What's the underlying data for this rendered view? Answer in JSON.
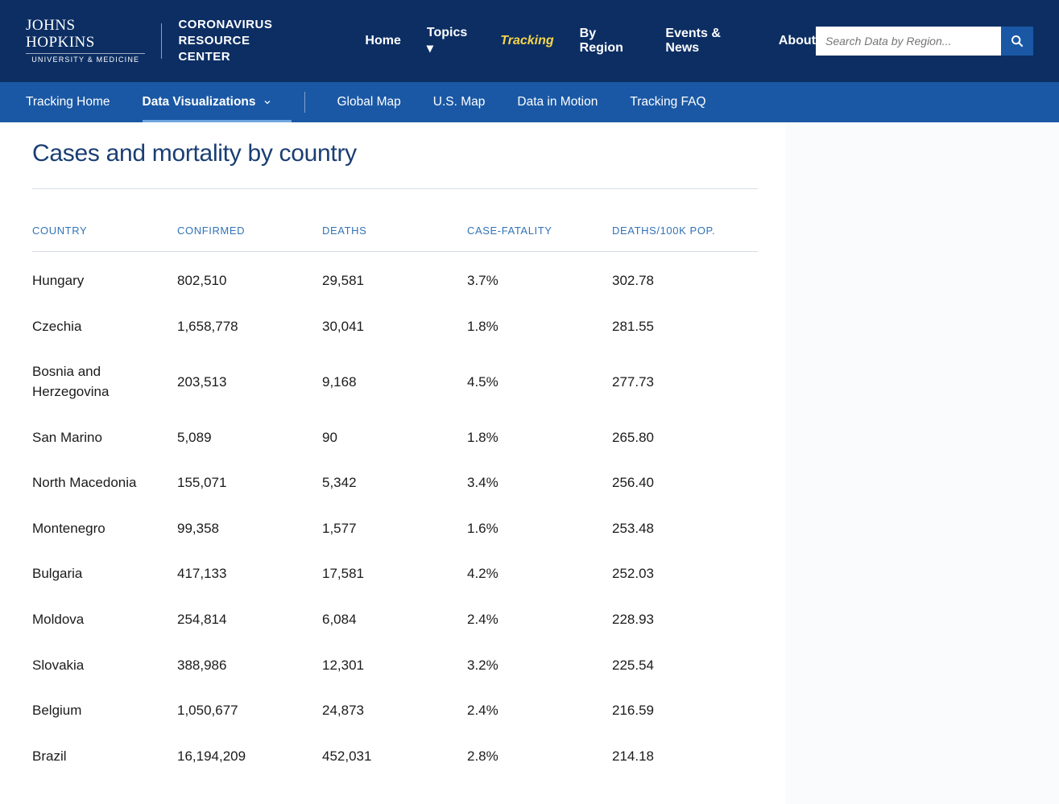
{
  "header": {
    "logo_line1": "JOHNS HOPKINS",
    "logo_line2": "UNIVERSITY & MEDICINE",
    "center_line1": "CORONAVIRUS",
    "center_line2": "RESOURCE CENTER",
    "nav": {
      "home": "Home",
      "topics": "Topics ▾",
      "tracking": "Tracking",
      "by_region": "By Region",
      "events": "Events & News",
      "about": "About"
    },
    "search_placeholder": "Search Data by Region..."
  },
  "subnav": {
    "tracking_home": "Tracking Home",
    "data_viz": "Data Visualizations",
    "global_map": "Global Map",
    "us_map": "U.S. Map",
    "data_motion": "Data in Motion",
    "faq": "Tracking FAQ"
  },
  "page": {
    "title": "Cases and mortality by country"
  },
  "table": {
    "columns": {
      "country": "COUNTRY",
      "confirmed": "CONFIRMED",
      "deaths": "DEATHS",
      "case_fatality": "CASE-FATALITY",
      "deaths_per_100k": "DEATHS/100K POP."
    },
    "rows": [
      {
        "country": "Hungary",
        "confirmed": "802,510",
        "deaths": "29,581",
        "cf": "3.7%",
        "dpk": "302.78"
      },
      {
        "country": "Czechia",
        "confirmed": "1,658,778",
        "deaths": "30,041",
        "cf": "1.8%",
        "dpk": "281.55"
      },
      {
        "country": "Bosnia and Herzegovina",
        "confirmed": "203,513",
        "deaths": "9,168",
        "cf": "4.5%",
        "dpk": "277.73"
      },
      {
        "country": "San Marino",
        "confirmed": "5,089",
        "deaths": "90",
        "cf": "1.8%",
        "dpk": "265.80"
      },
      {
        "country": "North Macedonia",
        "confirmed": "155,071",
        "deaths": "5,342",
        "cf": "3.4%",
        "dpk": "256.40"
      },
      {
        "country": "Montenegro",
        "confirmed": "99,358",
        "deaths": "1,577",
        "cf": "1.6%",
        "dpk": "253.48"
      },
      {
        "country": "Bulgaria",
        "confirmed": "417,133",
        "deaths": "17,581",
        "cf": "4.2%",
        "dpk": "252.03"
      },
      {
        "country": "Moldova",
        "confirmed": "254,814",
        "deaths": "6,084",
        "cf": "2.4%",
        "dpk": "228.93"
      },
      {
        "country": "Slovakia",
        "confirmed": "388,986",
        "deaths": "12,301",
        "cf": "3.2%",
        "dpk": "225.54"
      },
      {
        "country": "Belgium",
        "confirmed": "1,050,677",
        "deaths": "24,873",
        "cf": "2.4%",
        "dpk": "216.59"
      },
      {
        "country": "Brazil",
        "confirmed": "16,194,209",
        "deaths": "452,031",
        "cf": "2.8%",
        "dpk": "214.18"
      }
    ]
  },
  "colors": {
    "header_bg": "#0c2e63",
    "subheader_bg": "#1a58a5",
    "active_nav": "#f7d54a",
    "column_header": "#3273b7",
    "title": "#1a3e73",
    "text": "#1b1b1b",
    "divider": "#d6dde5"
  }
}
